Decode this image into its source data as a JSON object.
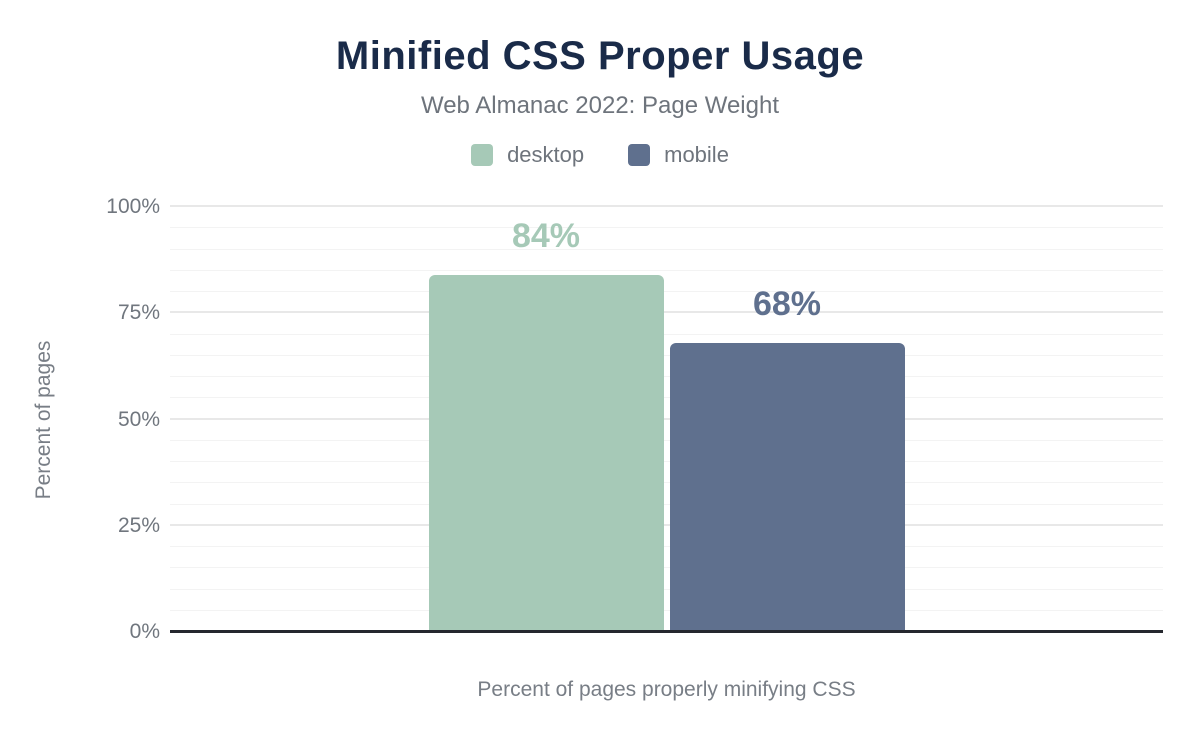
{
  "chart": {
    "title": "Minified CSS Proper Usage",
    "subtitle": "Web Almanac 2022: Page Weight",
    "x_axis_label": "Percent of pages properly minifying CSS",
    "y_axis_label": "Percent of pages"
  },
  "chart_data": {
    "type": "bar",
    "title": "Minified CSS Proper Usage",
    "subtitle": "Web Almanac 2022: Page Weight",
    "categories": [
      "desktop",
      "mobile"
    ],
    "series": [
      {
        "name": "desktop",
        "value": 84,
        "data_label": "84%",
        "color": "#a6c9b7"
      },
      {
        "name": "mobile",
        "value": 68,
        "data_label": "68%",
        "color": "#5f708e"
      }
    ],
    "xlabel": "Percent of pages properly minifying CSS",
    "ylabel": "Percent of pages",
    "ylim": [
      0,
      100
    ],
    "y_ticks": [
      {
        "value": 0,
        "label": "0%"
      },
      {
        "value": 25,
        "label": "25%"
      },
      {
        "value": 50,
        "label": "50%"
      },
      {
        "value": 75,
        "label": "75%"
      },
      {
        "value": 100,
        "label": "100%"
      }
    ],
    "grid": {
      "minor_step": 5,
      "major_step": 25,
      "orientation": "horizontal"
    },
    "legend_position": "top"
  },
  "legend": [
    {
      "label": "desktop",
      "color": "#a6c9b7"
    },
    {
      "label": "mobile",
      "color": "#5f708e"
    }
  ],
  "colors": {
    "title": "#1a2b49",
    "subtitle_gray": "#6e747c",
    "tick_gray": "#70767e",
    "axis_line": "#25282e",
    "gridline_minor": "#f3f3f3",
    "gridline_major": "#e8e8e8",
    "desktop": "#a6c9b7",
    "mobile": "#5f708e",
    "background": "#ffffff"
  }
}
